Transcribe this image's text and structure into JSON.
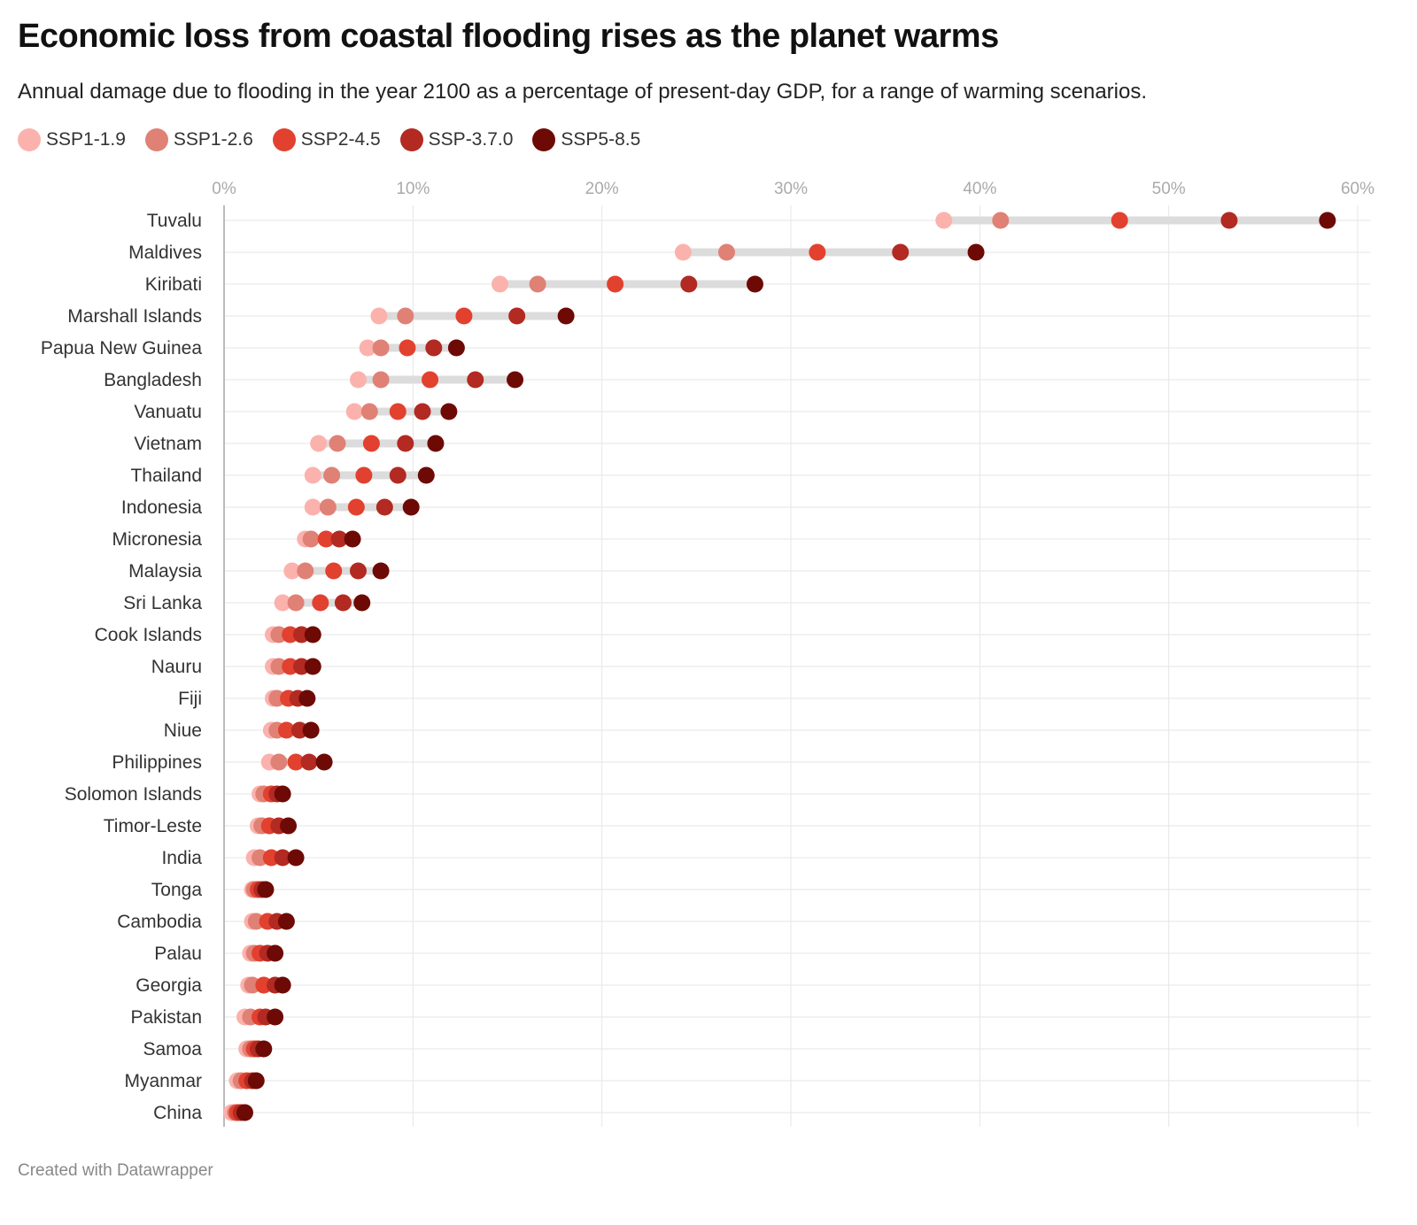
{
  "title": "Economic loss from coastal flooding rises as the planet warms",
  "subtitle": "Annual damage due to flooding in the year 2100 as a percentage of present-day GDP, for a range of warming scenarios.",
  "credit": "Created with Datawrapper",
  "chart_data": {
    "type": "scatter",
    "subtype": "dot-range",
    "xlim": [
      0,
      60
    ],
    "ticks": [
      0,
      10,
      20,
      30,
      40,
      50,
      60
    ],
    "tick_labels": [
      "0%",
      "10%",
      "20%",
      "30%",
      "40%",
      "50%",
      "60%"
    ],
    "grid": true,
    "legend_position": "top-left",
    "series": [
      {
        "name": "SSP1-1.9",
        "color": "#fbb2ad"
      },
      {
        "name": "SSP1-2.6",
        "color": "#e08176"
      },
      {
        "name": "SSP2-4.5",
        "color": "#e2412f"
      },
      {
        "name": "SSP-3.7.0",
        "color": "#b22a22"
      },
      {
        "name": "SSP5-8.5",
        "color": "#6e0a05"
      }
    ],
    "categories": [
      "Tuvalu",
      "Maldives",
      "Kiribati",
      "Marshall Islands",
      "Papua New Guinea",
      "Bangladesh",
      "Vanuatu",
      "Vietnam",
      "Thailand",
      "Indonesia",
      "Micronesia",
      "Malaysia",
      "Sri Lanka",
      "Cook Islands",
      "Nauru",
      "Fiji",
      "Niue",
      "Philippines",
      "Solomon Islands",
      "Timor-Leste",
      "India",
      "Tonga",
      "Cambodia",
      "Palau",
      "Georgia",
      "Pakistan",
      "Samoa",
      "Myanmar",
      "China"
    ],
    "values": [
      [
        38.1,
        41.1,
        47.4,
        53.2,
        58.4
      ],
      [
        24.3,
        26.6,
        31.4,
        35.8,
        39.8
      ],
      [
        14.6,
        16.6,
        20.7,
        24.6,
        28.1
      ],
      [
        8.2,
        9.6,
        12.7,
        15.5,
        18.1
      ],
      [
        7.6,
        8.3,
        9.7,
        11.1,
        12.3
      ],
      [
        7.1,
        8.3,
        10.9,
        13.3,
        15.4
      ],
      [
        6.9,
        7.7,
        9.2,
        10.5,
        11.9
      ],
      [
        5.0,
        6.0,
        7.8,
        9.6,
        11.2
      ],
      [
        4.7,
        5.7,
        7.4,
        9.2,
        10.7
      ],
      [
        4.7,
        5.5,
        7.0,
        8.5,
        9.9
      ],
      [
        4.3,
        4.6,
        5.4,
        6.1,
        6.8
      ],
      [
        3.6,
        4.3,
        5.8,
        7.1,
        8.3
      ],
      [
        3.1,
        3.8,
        5.1,
        6.3,
        7.3
      ],
      [
        2.6,
        2.9,
        3.5,
        4.1,
        4.7
      ],
      [
        2.6,
        2.9,
        3.5,
        4.1,
        4.7
      ],
      [
        2.6,
        2.8,
        3.4,
        3.9,
        4.4
      ],
      [
        2.5,
        2.8,
        3.3,
        4.0,
        4.6
      ],
      [
        2.4,
        2.9,
        3.8,
        4.5,
        5.3
      ],
      [
        1.9,
        2.1,
        2.5,
        2.8,
        3.1
      ],
      [
        1.8,
        2.0,
        2.4,
        2.9,
        3.4
      ],
      [
        1.6,
        1.9,
        2.5,
        3.1,
        3.8
      ],
      [
        1.5,
        1.6,
        1.8,
        2.0,
        2.2
      ],
      [
        1.5,
        1.7,
        2.3,
        2.8,
        3.3
      ],
      [
        1.4,
        1.6,
        1.9,
        2.3,
        2.7
      ],
      [
        1.3,
        1.5,
        2.1,
        2.7,
        3.1
      ],
      [
        1.1,
        1.4,
        1.9,
        2.2,
        2.7
      ],
      [
        1.2,
        1.4,
        1.6,
        1.8,
        2.1
      ],
      [
        0.7,
        0.9,
        1.2,
        1.5,
        1.7
      ],
      [
        0.4,
        0.6,
        0.7,
        0.9,
        1.1
      ]
    ]
  }
}
